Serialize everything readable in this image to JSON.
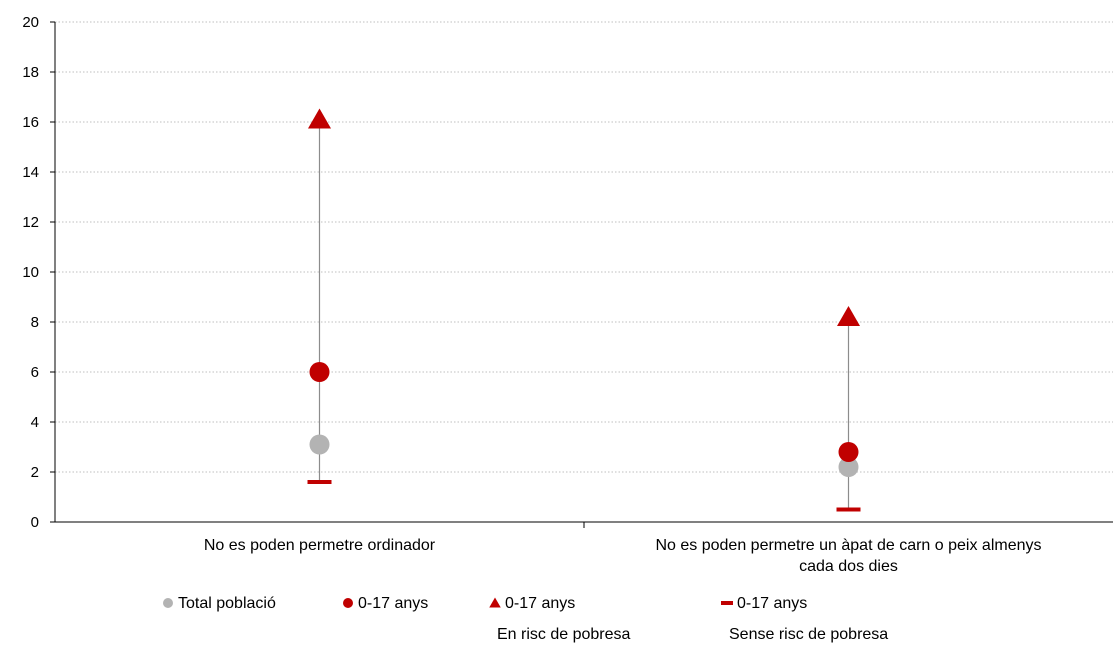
{
  "chart_data": {
    "type": "scatter",
    "ylim": [
      0,
      20
    ],
    "yticks": [
      "0",
      "2",
      "4",
      "6",
      "8",
      "10",
      "12",
      "14",
      "16",
      "18",
      "20"
    ],
    "grid": true,
    "legend_position": "bottom",
    "categories": [
      [
        "No es poden permetre ordinador"
      ],
      [
        "No es poden permetre un àpat de carn o peix almenys",
        "cada dos dies"
      ]
    ],
    "series": [
      {
        "name": "Total població",
        "marker": "circle",
        "color": "#b3b3b3",
        "values": [
          3.1,
          2.2
        ]
      },
      {
        "name": "0-17 anys",
        "marker": "circle",
        "color": "#c00000",
        "values": [
          6.0,
          2.8
        ]
      },
      {
        "name": "0-17 anys",
        "name_line2": "En risc de pobresa",
        "marker": "triangle",
        "color": "#c00000",
        "values": [
          16.1,
          8.2
        ]
      },
      {
        "name": "0-17 anys",
        "name_line2": "Sense risc de pobresa",
        "marker": "dash",
        "color": "#c00000",
        "values": [
          1.6,
          0.5
        ]
      }
    ],
    "range_line_color": "#8c8c8c"
  }
}
